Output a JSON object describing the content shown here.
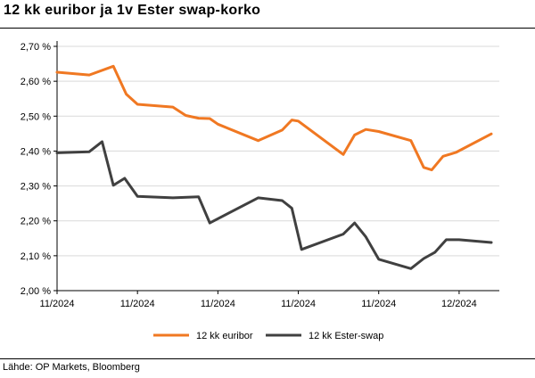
{
  "title": "12 kk euribor ja 1v Ester swap-korko",
  "source": "Lähde: OP Markets, Bloomberg",
  "chart_data": {
    "type": "line",
    "ylim": [
      2.0,
      2.7
    ],
    "yticks": [
      "2,70 %",
      "2,60 %",
      "2,50 %",
      "2,40 %",
      "2,30 %",
      "2,20 %",
      "2,10 %",
      "2,00 %"
    ],
    "ytick_values": [
      2.7,
      2.6,
      2.5,
      2.4,
      2.3,
      2.2,
      2.1,
      2.0
    ],
    "xlim": [
      0,
      27.5
    ],
    "xticks": [
      "11/2024",
      "11/2024",
      "11/2024",
      "11/2024",
      "11/2024",
      "12/2024"
    ],
    "xtick_values": [
      0,
      5,
      10,
      15,
      20,
      25
    ],
    "grid": true,
    "legend_position": "bottom",
    "series": [
      {
        "name": "12 kk euribor",
        "color": "#F07822",
        "x": [
          0,
          2,
          3.5,
          4.3,
          5,
          7.2,
          8,
          8.8,
          9.5,
          10,
          12.5,
          14,
          14.6,
          15,
          17.8,
          18.5,
          19.2,
          20,
          22,
          22.8,
          23.3,
          24,
          24.8,
          27
        ],
        "y": [
          2.626,
          2.618,
          2.643,
          2.563,
          2.534,
          2.526,
          2.502,
          2.494,
          2.493,
          2.477,
          2.43,
          2.46,
          2.489,
          2.486,
          2.39,
          2.446,
          2.462,
          2.456,
          2.43,
          2.353,
          2.346,
          2.385,
          2.396,
          2.449
        ]
      },
      {
        "name": "12 kk Ester-swap",
        "color": "#404040",
        "x": [
          0,
          2,
          2.8,
          3.5,
          4.2,
          5,
          7.2,
          8.8,
          9.5,
          12.5,
          14,
          14.6,
          15.2,
          17.8,
          18.5,
          19.2,
          20,
          22,
          22.8,
          23.5,
          24.2,
          25,
          27
        ],
        "y": [
          2.395,
          2.398,
          2.427,
          2.302,
          2.322,
          2.27,
          2.266,
          2.269,
          2.194,
          2.266,
          2.258,
          2.236,
          2.118,
          2.162,
          2.194,
          2.154,
          2.09,
          2.063,
          2.092,
          2.11,
          2.146,
          2.146,
          2.138
        ]
      }
    ]
  }
}
